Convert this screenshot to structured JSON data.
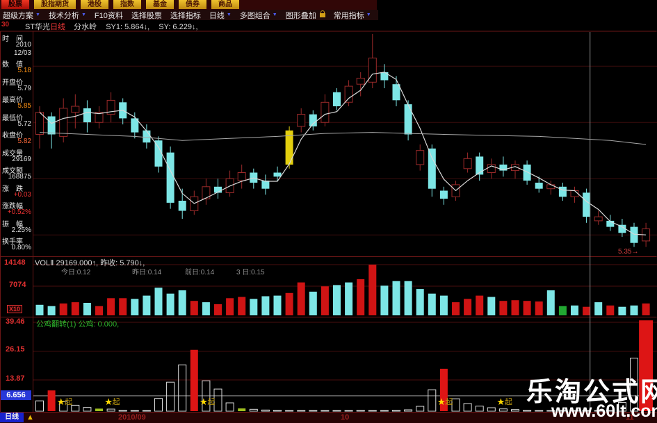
{
  "menu_bar": {
    "tabs": [
      {
        "label": "股票",
        "active": true
      },
      {
        "label": "股指期货",
        "active": false
      },
      {
        "label": "港股",
        "active": false
      },
      {
        "label": "指数",
        "active": false
      },
      {
        "label": "基金",
        "active": false
      },
      {
        "label": "债券",
        "active": false
      },
      {
        "label": "商品",
        "active": false
      }
    ]
  },
  "toolbar": {
    "items": [
      {
        "label": "超级方案",
        "arrow": true,
        "lock": false
      },
      {
        "label": "技术分析",
        "arrow": true,
        "lock": false
      },
      {
        "label": "F10资料",
        "arrow": false,
        "lock": false
      },
      {
        "label": "选择股票",
        "arrow": false,
        "lock": false
      },
      {
        "label": "选择指标",
        "arrow": false,
        "lock": false
      },
      {
        "label": "日线",
        "arrow": true,
        "lock": false
      },
      {
        "label": "多图组合",
        "arrow": true,
        "lock": false
      },
      {
        "label": "图形叠加",
        "arrow": false,
        "lock": true
      },
      {
        "label": "常用指标",
        "arrow": true,
        "lock": false
      }
    ]
  },
  "title_bar": {
    "corner": "30",
    "stock": "ST华光",
    "period": "日线",
    "indicator": "分水岭",
    "sy1": "SY1: 5.864↓,",
    "sy": "SY: 6.229↓,"
  },
  "sidebar": {
    "rows": [
      {
        "label": "时　间",
        "values": [
          "2010",
          "12/03"
        ],
        "color": "#e0e0e0"
      },
      {
        "label": "数　值",
        "values": [
          "5.18"
        ],
        "color": "#ff9214"
      },
      {
        "label": "开盘价",
        "values": [
          "5.79"
        ],
        "color": "#e0e0e0"
      },
      {
        "label": "最高价",
        "values": [
          "5.85"
        ],
        "color": "#ff9214"
      },
      {
        "label": "最低价",
        "values": [
          "5.72"
        ],
        "color": "#e0e0e0"
      },
      {
        "label": "收盘价",
        "values": [
          "5.82"
        ],
        "color": "#ff6a3a"
      },
      {
        "label": "成交量",
        "values": [
          "29169"
        ],
        "color": "#e0e0e0"
      },
      {
        "label": "成交额",
        "values": [
          "168875"
        ],
        "color": "#e0e0e0"
      },
      {
        "label": "涨　跌",
        "values": [
          "+0.03"
        ],
        "color": "#ee3333"
      },
      {
        "label": "涨跌幅",
        "values": [
          "+0.52%"
        ],
        "color": "#ee3333"
      },
      {
        "label": "振　幅",
        "values": [
          "2.25%"
        ],
        "color": "#e0e0e0"
      },
      {
        "label": "换手率",
        "values": [
          "0.80%"
        ],
        "color": "#e0e0e0"
      }
    ]
  },
  "volume_panel": {
    "title": "VOLⅡ 29169.000↑, 昨收: 5.790↓,",
    "legend_items": [
      "今日:0.12",
      "昨日:0.14",
      "前日:0.14",
      "3 日:0.15"
    ],
    "scale_top": "14148",
    "scale_mid": "7074",
    "multiplier": "X10"
  },
  "indicator_panel": {
    "title": "公鸡翻转(1) 公鸡: 0.000,",
    "scale": [
      "39.46",
      "26.15",
      "13.87"
    ],
    "crosshair_value": "6.656",
    "star_text": "★起"
  },
  "axis_bar": {
    "period_button": "日线",
    "triangle": "▲",
    "dates": [
      "2010/09",
      "10",
      "11"
    ]
  },
  "watermark": {
    "line1": "乐淘公式网",
    "line2": "www.60lt.com"
  },
  "price_label": "5.35→",
  "colors": {
    "up": "#9c2a2a",
    "down": "#7de6e6",
    "highlight": "#e3cf0e",
    "vol_up": "#d01414",
    "vol_down": "#7de6e6",
    "vol_special": "#22a832",
    "ind_red": "#dd1515",
    "ind_white": "#dcdcdc",
    "ind_green": "#a0c020",
    "ma_fast": "#d8d8d8",
    "ma_slow": "#a8a8a8",
    "grid": "#3a0c0c",
    "sub_grid": "#4a0e0e",
    "panel_border": "#6b1616",
    "crosshair": "#8a8a8a",
    "level_line": "#9a9a9a",
    "star_yellow": "#ffd700",
    "star_text": "#bf9b10"
  },
  "chart_data": {
    "type": "candlestick",
    "symbol": "ST华光",
    "period": "日线",
    "price_axis": {
      "ylim": [
        5.28,
        6.4
      ],
      "gridline_prices": [
        6.23,
        5.95,
        5.67,
        5.39
      ],
      "last_price_label": "5.35→"
    },
    "candles": [
      [
        5.89,
        6.03,
        5.82,
        6.0,
        "u"
      ],
      [
        5.98,
        6.0,
        5.82,
        5.89,
        "d"
      ],
      [
        5.88,
        6.07,
        5.85,
        6.02,
        "u"
      ],
      [
        6.0,
        6.09,
        5.92,
        6.03,
        "u"
      ],
      [
        6.02,
        6.06,
        5.9,
        5.95,
        "d"
      ],
      [
        5.95,
        6.03,
        5.92,
        6.0,
        "u"
      ],
      [
        5.99,
        6.1,
        5.95,
        6.06,
        "u"
      ],
      [
        6.05,
        6.07,
        5.94,
        5.97,
        "d"
      ],
      [
        5.97,
        6.0,
        5.87,
        5.9,
        "d"
      ],
      [
        5.91,
        5.94,
        5.82,
        5.85,
        "d"
      ],
      [
        5.86,
        5.88,
        5.7,
        5.73,
        "d"
      ],
      [
        5.8,
        5.83,
        5.52,
        5.55,
        "d"
      ],
      [
        5.56,
        5.62,
        5.47,
        5.51,
        "d"
      ],
      [
        5.51,
        5.61,
        5.49,
        5.58,
        "u"
      ],
      [
        5.57,
        5.67,
        5.54,
        5.63,
        "u"
      ],
      [
        5.63,
        5.67,
        5.57,
        5.6,
        "d"
      ],
      [
        5.6,
        5.71,
        5.58,
        5.67,
        "u"
      ],
      [
        5.66,
        5.74,
        5.62,
        5.7,
        "u"
      ],
      [
        5.7,
        5.72,
        5.62,
        5.65,
        "d"
      ],
      [
        5.66,
        5.69,
        5.59,
        5.62,
        "d"
      ],
      [
        5.68,
        5.73,
        5.66,
        5.7,
        "d"
      ],
      [
        5.74,
        5.93,
        5.72,
        5.91,
        "y"
      ],
      [
        5.93,
        6.02,
        5.9,
        5.99,
        "u"
      ],
      [
        5.99,
        6.01,
        5.91,
        5.93,
        "d"
      ],
      [
        5.95,
        6.09,
        5.93,
        6.05,
        "u"
      ],
      [
        6.1,
        6.12,
        6.01,
        6.03,
        "d"
      ],
      [
        6.05,
        6.16,
        6.03,
        6.13,
        "u"
      ],
      [
        6.14,
        6.2,
        6.08,
        6.17,
        "u"
      ],
      [
        6.15,
        6.39,
        6.12,
        6.27,
        "u"
      ],
      [
        6.2,
        6.24,
        6.12,
        6.16,
        "d"
      ],
      [
        6.14,
        6.18,
        6.03,
        6.06,
        "d"
      ],
      [
        6.04,
        6.06,
        5.86,
        5.89,
        "d"
      ],
      [
        5.74,
        5.84,
        5.71,
        5.81,
        "u"
      ],
      [
        5.82,
        5.84,
        5.58,
        5.62,
        "d"
      ],
      [
        5.61,
        5.63,
        5.54,
        5.57,
        "d"
      ],
      [
        5.58,
        5.66,
        5.56,
        5.64,
        "u"
      ],
      [
        5.72,
        5.8,
        5.7,
        5.77,
        "u"
      ],
      [
        5.78,
        5.8,
        5.66,
        5.69,
        "d"
      ],
      [
        5.7,
        5.77,
        5.67,
        5.74,
        "u"
      ],
      [
        5.74,
        5.78,
        5.68,
        5.71,
        "d"
      ],
      [
        5.71,
        5.76,
        5.67,
        5.74,
        "u"
      ],
      [
        5.74,
        5.76,
        5.64,
        5.66,
        "d"
      ],
      [
        5.65,
        5.68,
        5.6,
        5.62,
        "d"
      ],
      [
        5.62,
        5.66,
        5.59,
        5.64,
        "u"
      ],
      [
        5.63,
        5.65,
        5.56,
        5.58,
        "d"
      ],
      [
        5.58,
        5.63,
        5.55,
        5.61,
        "u"
      ],
      [
        5.6,
        5.62,
        5.45,
        5.48,
        "d"
      ],
      [
        5.48,
        5.51,
        5.44,
        5.46,
        "u"
      ],
      [
        5.46,
        5.49,
        5.41,
        5.43,
        "d"
      ],
      [
        5.44,
        5.47,
        5.38,
        5.4,
        "d"
      ],
      [
        5.43,
        5.45,
        5.33,
        5.35,
        "d"
      ],
      [
        5.36,
        5.45,
        5.33,
        5.42,
        "u"
      ]
    ],
    "ma_slow": [
      [
        0,
        5.9
      ],
      [
        4,
        5.89
      ],
      [
        8,
        5.88
      ],
      [
        12,
        5.86
      ],
      [
        16,
        5.87
      ],
      [
        20,
        5.88
      ],
      [
        24,
        5.895
      ],
      [
        28,
        5.9
      ],
      [
        31,
        5.895
      ],
      [
        34,
        5.89
      ],
      [
        38,
        5.885
      ],
      [
        42,
        5.88
      ],
      [
        45,
        5.87
      ],
      [
        48,
        5.86
      ],
      [
        51,
        5.84
      ]
    ],
    "volume": {
      "ylim": [
        0,
        14148
      ],
      "bars": [
        [
          2940,
          "c"
        ],
        [
          2570,
          "c"
        ],
        [
          3310,
          "r"
        ],
        [
          3670,
          "r"
        ],
        [
          3490,
          "c"
        ],
        [
          2570,
          "r"
        ],
        [
          4780,
          "r"
        ],
        [
          4780,
          "r"
        ],
        [
          4590,
          "c"
        ],
        [
          5510,
          "c"
        ],
        [
          7720,
          "c"
        ],
        [
          6060,
          "c"
        ],
        [
          6980,
          "c"
        ],
        [
          4040,
          "r"
        ],
        [
          3670,
          "c"
        ],
        [
          3120,
          "r"
        ],
        [
          4780,
          "r"
        ],
        [
          5140,
          "r"
        ],
        [
          4590,
          "c"
        ],
        [
          5330,
          "c"
        ],
        [
          5510,
          "c"
        ],
        [
          6250,
          "r"
        ],
        [
          9190,
          "r"
        ],
        [
          6610,
          "c"
        ],
        [
          8080,
          "r"
        ],
        [
          8450,
          "c"
        ],
        [
          9190,
          "c"
        ],
        [
          10100,
          "r"
        ],
        [
          14148,
          "r"
        ],
        [
          8270,
          "c"
        ],
        [
          9550,
          "c"
        ],
        [
          9550,
          "c"
        ],
        [
          7350,
          "c"
        ],
        [
          6060,
          "c"
        ],
        [
          5510,
          "c"
        ],
        [
          3670,
          "r"
        ],
        [
          4590,
          "r"
        ],
        [
          5510,
          "r"
        ],
        [
          5140,
          "c"
        ],
        [
          4040,
          "r"
        ],
        [
          4230,
          "r"
        ],
        [
          4040,
          "r"
        ],
        [
          3860,
          "r"
        ],
        [
          6980,
          "c"
        ],
        [
          2570,
          "g"
        ],
        [
          2760,
          "c"
        ],
        [
          2390,
          "r"
        ],
        [
          3670,
          "c"
        ],
        [
          2760,
          "r"
        ],
        [
          2390,
          "c"
        ],
        [
          2760,
          "c"
        ],
        [
          3310,
          "r"
        ]
      ]
    },
    "indicator": {
      "name": "公鸡翻转",
      "level_line_value": 6.656,
      "bars": [
        [
          4.5,
          "w"
        ],
        [
          9.0,
          "r"
        ],
        [
          4.2,
          "w"
        ],
        [
          2.6,
          "w"
        ],
        [
          1.6,
          "w"
        ],
        [
          1.1,
          "g"
        ],
        [
          0.9,
          "w"
        ],
        [
          0.4,
          "w"
        ],
        [
          0.3,
          "w"
        ],
        [
          0.3,
          "w"
        ],
        [
          5.5,
          "w"
        ],
        [
          12.6,
          "w"
        ],
        [
          20.1,
          "w"
        ],
        [
          26.6,
          "r"
        ],
        [
          13.2,
          "w"
        ],
        [
          9.6,
          "w"
        ],
        [
          3.6,
          "w"
        ],
        [
          1.2,
          "g"
        ],
        [
          0.8,
          "w"
        ],
        [
          0.5,
          "w"
        ],
        [
          0.4,
          "w"
        ],
        [
          0.3,
          "w"
        ],
        [
          0.3,
          "w"
        ],
        [
          0.3,
          "w"
        ],
        [
          0.3,
          "w"
        ],
        [
          0.3,
          "w"
        ],
        [
          0.3,
          "w"
        ],
        [
          0.4,
          "w"
        ],
        [
          0.3,
          "w"
        ],
        [
          0.3,
          "w"
        ],
        [
          0.4,
          "w"
        ],
        [
          0.6,
          "w"
        ],
        [
          2.1,
          "w"
        ],
        [
          9.3,
          "w"
        ],
        [
          18.4,
          "r"
        ],
        [
          5.4,
          "w"
        ],
        [
          3.3,
          "w"
        ],
        [
          2.2,
          "w"
        ],
        [
          1.5,
          "w"
        ],
        [
          1.0,
          "w"
        ],
        [
          0.7,
          "w"
        ],
        [
          0.4,
          "w"
        ],
        [
          0.3,
          "w"
        ],
        [
          0.3,
          "w"
        ],
        [
          0.3,
          "w"
        ],
        [
          0.3,
          "w"
        ],
        [
          0.3,
          "w"
        ],
        [
          0.3,
          "w"
        ],
        [
          0.4,
          "w"
        ],
        [
          3.8,
          "w"
        ],
        [
          23.0,
          "w"
        ],
        [
          39.4,
          "r",
          20
        ]
      ],
      "star_slots": [
        2,
        6,
        14,
        34,
        39
      ]
    },
    "crosshair_x_slot": 46.3,
    "x_axis_dates": [
      "2010/09",
      "10",
      "11"
    ]
  }
}
